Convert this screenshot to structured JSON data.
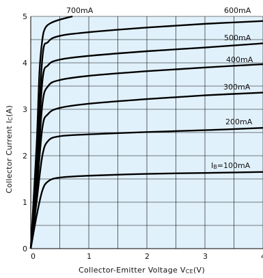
{
  "chart_data": {
    "type": "line",
    "xlabel": "Collector-Emitter Voltage VCE(V)",
    "ylabel": "Collector Current IC(A)",
    "xlim": [
      0,
      4
    ],
    "ylim": [
      0,
      5
    ],
    "x_ticks": [
      "0",
      "1",
      "2",
      "3",
      "4"
    ],
    "y_ticks": [
      "0",
      "1",
      "2",
      "3",
      "4",
      "5"
    ],
    "grid": true,
    "background": "#e1f1fb",
    "line_color": "#000000",
    "series": [
      {
        "name": "IB=100mA",
        "values": [
          [
            0,
            0
          ],
          [
            0.1,
            0.7
          ],
          [
            0.2,
            1.25
          ],
          [
            0.3,
            1.45
          ],
          [
            0.5,
            1.53
          ],
          [
            1,
            1.57
          ],
          [
            2,
            1.61
          ],
          [
            3,
            1.63
          ],
          [
            4,
            1.65
          ]
        ]
      },
      {
        "name": "200mA",
        "values": [
          [
            0,
            0
          ],
          [
            0.1,
            1.0
          ],
          [
            0.2,
            2.0
          ],
          [
            0.3,
            2.32
          ],
          [
            0.5,
            2.42
          ],
          [
            1,
            2.46
          ],
          [
            2,
            2.51
          ],
          [
            3,
            2.55
          ],
          [
            4,
            2.6
          ]
        ]
      },
      {
        "name": "300mA",
        "values": [
          [
            0,
            0
          ],
          [
            0.1,
            1.2
          ],
          [
            0.2,
            2.6
          ],
          [
            0.3,
            2.9
          ],
          [
            0.5,
            3.03
          ],
          [
            1,
            3.12
          ],
          [
            2,
            3.22
          ],
          [
            3,
            3.3
          ],
          [
            4,
            3.36
          ]
        ]
      },
      {
        "name": "400mA",
        "values": [
          [
            0,
            0
          ],
          [
            0.1,
            1.4
          ],
          [
            0.2,
            3.1
          ],
          [
            0.3,
            3.5
          ],
          [
            0.5,
            3.63
          ],
          [
            1,
            3.72
          ],
          [
            2,
            3.82
          ],
          [
            3,
            3.9
          ],
          [
            4,
            3.97
          ]
        ]
      },
      {
        "name": "500mA",
        "values": [
          [
            0,
            0
          ],
          [
            0.1,
            1.6
          ],
          [
            0.2,
            3.6
          ],
          [
            0.3,
            3.95
          ],
          [
            0.5,
            4.07
          ],
          [
            1,
            4.15
          ],
          [
            2,
            4.25
          ],
          [
            3,
            4.33
          ],
          [
            4,
            4.42
          ]
        ]
      },
      {
        "name": "600mA",
        "values": [
          [
            0,
            0
          ],
          [
            0.1,
            1.8
          ],
          [
            0.2,
            4.1
          ],
          [
            0.3,
            4.45
          ],
          [
            0.5,
            4.58
          ],
          [
            1,
            4.66
          ],
          [
            2,
            4.76
          ],
          [
            3,
            4.84
          ],
          [
            4,
            4.9
          ]
        ]
      },
      {
        "name": "700mA",
        "values": [
          [
            0,
            0
          ],
          [
            0.1,
            2.2
          ],
          [
            0.15,
            3.8
          ],
          [
            0.2,
            4.5
          ],
          [
            0.25,
            4.75
          ],
          [
            0.35,
            4.86
          ],
          [
            0.5,
            4.93
          ],
          [
            0.65,
            4.98
          ],
          [
            0.72,
            5.0
          ]
        ]
      }
    ],
    "labels": [
      {
        "text": "700mA"
      },
      {
        "text": "600mA"
      },
      {
        "text": "500mA"
      },
      {
        "text": "400mA"
      },
      {
        "text": "300mA"
      },
      {
        "text": "200mA"
      },
      {
        "text": "IB=100mA"
      }
    ]
  }
}
